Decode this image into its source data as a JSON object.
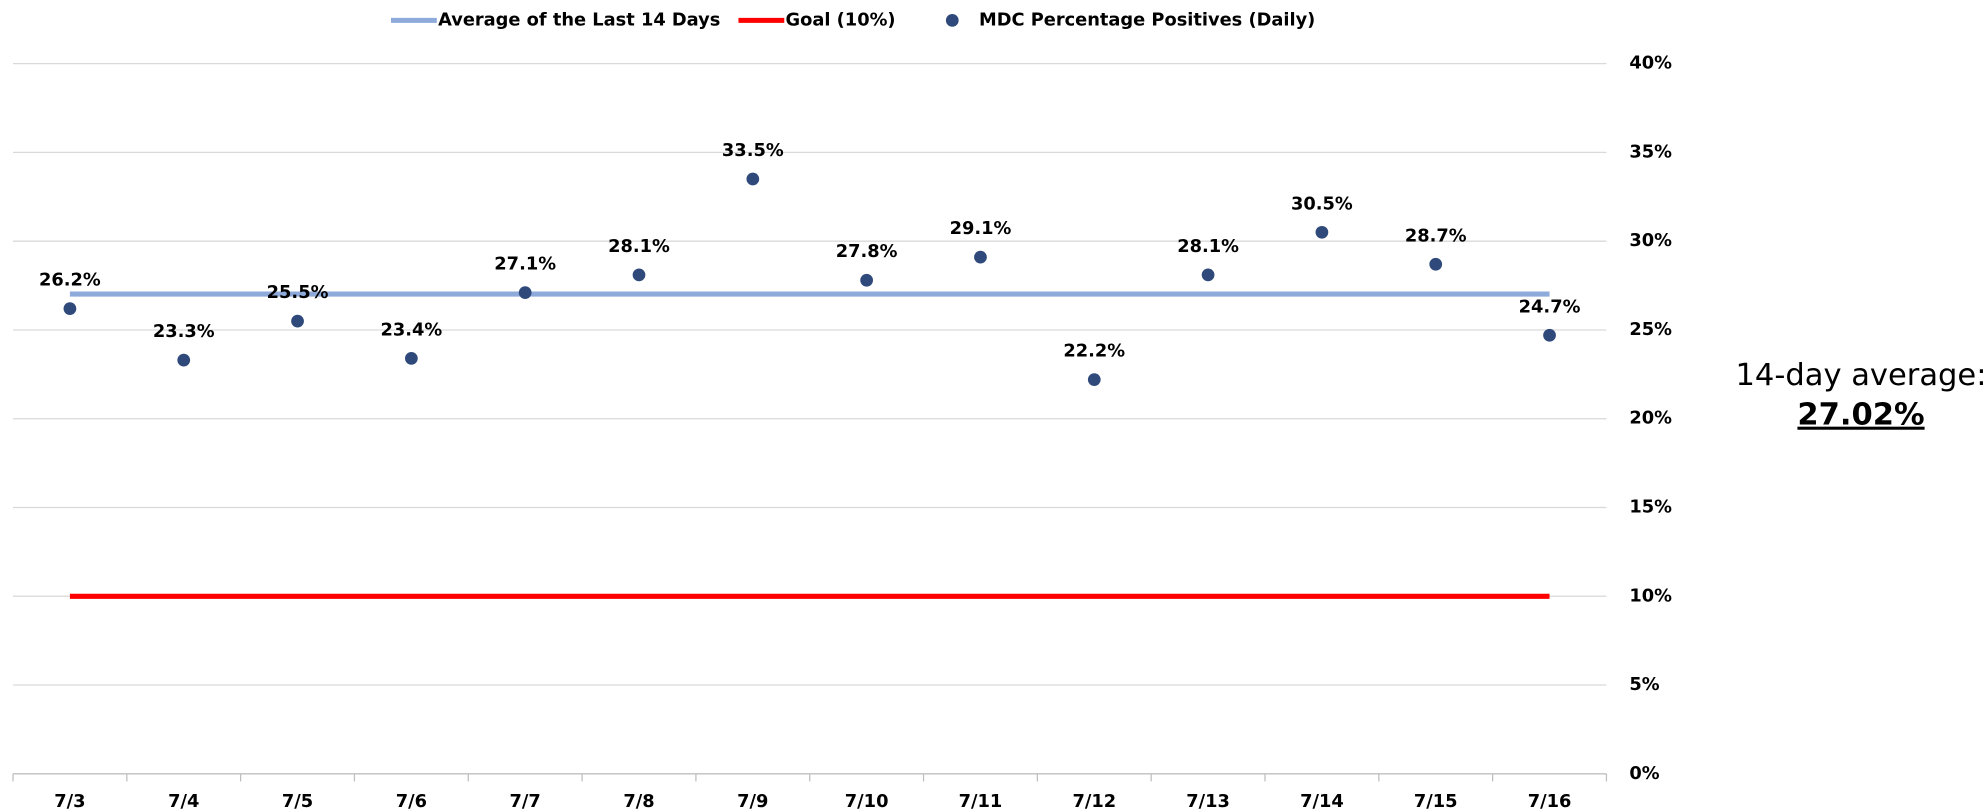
{
  "chart_data": {
    "type": "line",
    "categories": [
      "7/3",
      "7/4",
      "7/5",
      "7/6",
      "7/7",
      "7/8",
      "7/9",
      "7/10",
      "7/11",
      "7/12",
      "7/13",
      "7/14",
      "7/15",
      "7/16"
    ],
    "series": [
      {
        "name": "Average of the Last 14 Days",
        "color": "#8eaadb",
        "kind": "line",
        "values": [
          27.02,
          27.02,
          27.02,
          27.02,
          27.02,
          27.02,
          27.02,
          27.02,
          27.02,
          27.02,
          27.02,
          27.02,
          27.02,
          27.02
        ]
      },
      {
        "name": "Goal (10%)",
        "color": "#ff0000",
        "kind": "line",
        "values": [
          10,
          10,
          10,
          10,
          10,
          10,
          10,
          10,
          10,
          10,
          10,
          10,
          10,
          10
        ]
      },
      {
        "name": "MDC Percentage Positives (Daily)",
        "color": "#2f4a7a",
        "kind": "scatter",
        "values": [
          26.2,
          23.3,
          25.5,
          23.4,
          27.1,
          28.1,
          33.5,
          27.8,
          29.1,
          22.2,
          28.1,
          30.5,
          28.7,
          24.7
        ],
        "value_labels": [
          "26.2%",
          "23.3%",
          "25.5%",
          "23.4%",
          "27.1%",
          "28.1%",
          "33.5%",
          "27.8%",
          "29.1%",
          "22.2%",
          "28.1%",
          "30.5%",
          "28.7%",
          "24.7%"
        ]
      }
    ],
    "ylim": [
      0,
      40
    ],
    "yticks": [
      {
        "value": 0,
        "label": "0%"
      },
      {
        "value": 5,
        "label": "5%"
      },
      {
        "value": 10,
        "label": "10%"
      },
      {
        "value": 15,
        "label": "15%"
      },
      {
        "value": 20,
        "label": "20%"
      },
      {
        "value": 25,
        "label": "25%"
      },
      {
        "value": 30,
        "label": "30%"
      },
      {
        "value": 35,
        "label": "35%"
      },
      {
        "value": 40,
        "label": "40%"
      }
    ],
    "grid": true,
    "legend": "top",
    "annotation": {
      "label": "14-day average:",
      "value": "27.02%"
    }
  }
}
